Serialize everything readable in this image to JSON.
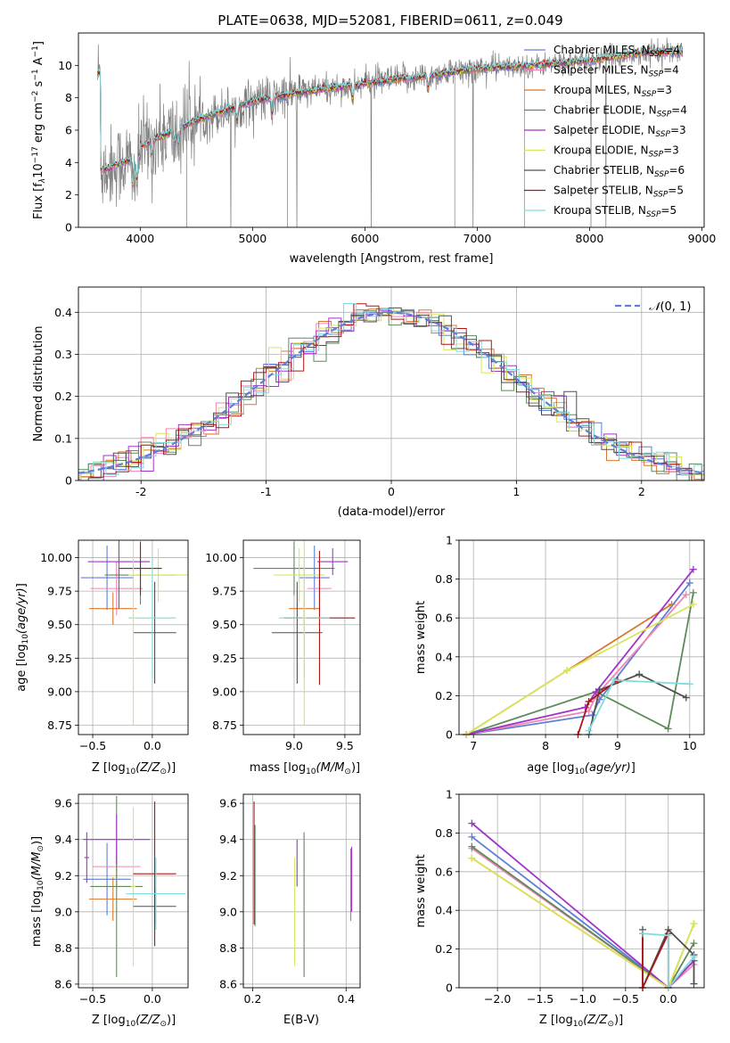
{
  "figure_title": "PLATE=0638, MJD=52081, FIBERID=0611, z=0.049",
  "legend_main": [
    {
      "label": "Chabrier MILES, N$_{SSP}$=4",
      "text": "Chabrier MILES, N",
      "sub": "SSP",
      "tail": "=4",
      "color": "#5d7fd8"
    },
    {
      "label": "Salpeter MILES, N$_{SSP}$=4",
      "text": "Salpeter MILES, N",
      "sub": "SSP",
      "tail": "=4",
      "color": "#ef86b3"
    },
    {
      "label": "Kroupa MILES, N$_{SSP}$=3",
      "text": "Kroupa MILES, N",
      "sub": "SSP",
      "tail": "=3",
      "color": "#d9782c"
    },
    {
      "label": "Chabrier ELODIE, N$_{SSP}$=4",
      "text": "Chabrier ELODIE, N",
      "sub": "SSP",
      "tail": "=4",
      "color": "#5e8a5a"
    },
    {
      "label": "Salpeter ELODIE, N$_{SSP}$=3",
      "text": "Salpeter ELODIE, N",
      "sub": "SSP",
      "tail": "=3",
      "color": "#a135c7"
    },
    {
      "label": "Kroupa ELODIE, N$_{SSP}$=3",
      "text": "Kroupa ELODIE, N",
      "sub": "SSP",
      "tail": "=3",
      "color": "#d7e65a"
    },
    {
      "label": "Chabrier STELIB, N$_{SSP}$=6",
      "text": "Chabrier STELIB, N",
      "sub": "SSP",
      "tail": "=6",
      "color": "#505050"
    },
    {
      "label": "Salpeter STELIB, N$_{SSP}$=5",
      "text": "Salpeter STELIB, N",
      "sub": "SSP",
      "tail": "=5",
      "color": "#a81818"
    },
    {
      "label": "Kroupa STELIB, N$_{SSP}$=5",
      "text": "Kroupa STELIB, N",
      "sub": "SSP",
      "tail": "=5",
      "color": "#7fdcdc"
    }
  ],
  "chart_data": [
    {
      "id": "spectrum",
      "type": "line",
      "xlabel": "wavelength [Angstrom, rest frame]",
      "ylabel": "Flux [f_λ 10^-17 erg cm^-2 s^-1 A^-1]",
      "xlim": [
        3450,
        9020
      ],
      "ylim": [
        0,
        12
      ],
      "xticks": [
        4000,
        5000,
        6000,
        7000,
        8000,
        9000
      ],
      "yticks": [
        0,
        2,
        4,
        6,
        8,
        10
      ],
      "data_color": "#808080",
      "observed": {
        "name": "data",
        "x_range": [
          3620,
          8830
        ],
        "approx_points": [
          [
            3650,
            4.0
          ],
          [
            4000,
            5.0
          ],
          [
            4500,
            6.6
          ],
          [
            5000,
            7.8
          ],
          [
            5500,
            8.4
          ],
          [
            6000,
            8.9
          ],
          [
            6500,
            9.3
          ],
          [
            7000,
            9.8
          ],
          [
            7500,
            10.0
          ],
          [
            8000,
            10.3
          ],
          [
            8500,
            10.8
          ],
          [
            8830,
            10.8
          ]
        ]
      }
    },
    {
      "id": "residuals",
      "type": "step",
      "xlabel": "(data-model)/error",
      "ylabel": "Normed distribution",
      "xlim": [
        -2.5,
        2.5
      ],
      "ylim": [
        0,
        0.46
      ],
      "xticks": [
        -2,
        -1,
        0,
        1,
        2
      ],
      "yticks": [
        0.0,
        0.1,
        0.2,
        0.3,
        0.4
      ],
      "grid": true,
      "bin_width": 0.1,
      "reference": {
        "name": "$\\mathcal{N}(0,1)$",
        "color": "#5d7fd8",
        "style": "dashed"
      },
      "legend_position": "upper right"
    },
    {
      "id": "age_vs_Z",
      "type": "scatter",
      "xlabel": "Z [log10(Z/Z☉)]",
      "ylabel": "age [log10(age/yr)]",
      "xlim": [
        -0.62,
        0.3
      ],
      "ylim": [
        8.68,
        10.13
      ],
      "xticks": [
        -0.5,
        0.0
      ],
      "xticklabels": [
        "−0.5",
        "0.0"
      ],
      "yticks": [
        8.75,
        9.0,
        9.25,
        9.5,
        9.75,
        10.0
      ],
      "yticklabels": [
        "8.75",
        "9.00",
        "9.25",
        "9.50",
        "9.75",
        "10.00"
      ],
      "grid": true,
      "points": [
        {
          "x": -0.38,
          "y": 9.85,
          "xerr": 0.22,
          "yerr": 0.24,
          "color": "#5d7fd8"
        },
        {
          "x": -0.3,
          "y": 9.77,
          "xerr": 0.22,
          "yerr": 0.2,
          "color": "#ef86b3"
        },
        {
          "x": -0.33,
          "y": 9.62,
          "xerr": 0.2,
          "yerr": 0.12,
          "color": "#d9782c"
        },
        {
          "x": -0.1,
          "y": 9.87,
          "xerr": 0.3,
          "yerr": 0.22,
          "color": "#5e8a5a"
        },
        {
          "x": -0.28,
          "y": 9.97,
          "xerr": 0.26,
          "yerr": 0.35,
          "color": "#a135c7"
        },
        {
          "x": 0.05,
          "y": 9.87,
          "xerr": 0.25,
          "yerr": 0.2,
          "color": "#d7e65a"
        },
        {
          "x": 0.02,
          "y": 9.44,
          "xerr": 0.18,
          "yerr": 0.38,
          "color": "#505050"
        },
        {
          "x": -0.1,
          "y": 9.92,
          "xerr": 0.18,
          "yerr": 0.2,
          "color": "#a81818"
        },
        {
          "x": 0.0,
          "y": 9.55,
          "xerr": 0.2,
          "yerr": 0.45,
          "color": "#7fdcdc"
        },
        {
          "x": -0.16,
          "y": 9.55,
          "xerr": 0.02,
          "yerr": 0.8,
          "color": "#d7e65a"
        }
      ]
    },
    {
      "id": "age_vs_mass",
      "type": "scatter",
      "xlabel": "mass [log10(M/M☉)]",
      "ylabel": "",
      "xlim": [
        8.5,
        9.65
      ],
      "ylim": [
        8.68,
        10.13
      ],
      "xticks": [
        9.0,
        9.5
      ],
      "xticklabels": [
        "9.0",
        "9.5"
      ],
      "yticks": [
        8.75,
        9.0,
        9.25,
        9.5,
        9.75,
        10.0
      ],
      "yticklabels": [
        "8.75",
        "9.00",
        "9.25",
        "9.50",
        "9.75",
        "10.00"
      ],
      "grid": true,
      "points": [
        {
          "x": 9.2,
          "y": 9.85,
          "xerr": 0.15,
          "yerr": 0.24,
          "color": "#5d7fd8"
        },
        {
          "x": 9.25,
          "y": 9.77,
          "xerr": 0.12,
          "yerr": 0.2,
          "color": "#ef86b3"
        },
        {
          "x": 9.1,
          "y": 9.62,
          "xerr": 0.15,
          "yerr": 0.12,
          "color": "#d9782c"
        },
        {
          "x": 9.0,
          "y": 9.92,
          "xerr": 0.4,
          "yerr": 0.2,
          "color": "#5e8a5a"
        },
        {
          "x": 9.38,
          "y": 9.97,
          "xerr": 0.15,
          "yerr": 0.1,
          "color": "#a135c7"
        },
        {
          "x": 9.05,
          "y": 9.87,
          "xerr": 0.25,
          "yerr": 0.2,
          "color": "#d7e65a"
        },
        {
          "x": 9.03,
          "y": 9.44,
          "xerr": 0.25,
          "yerr": 0.38,
          "color": "#505050"
        },
        {
          "x": 9.25,
          "y": 9.55,
          "xerr": 0.35,
          "yerr": 0.5,
          "color": "#a81818"
        },
        {
          "x": 9.1,
          "y": 9.55,
          "xerr": 0.25,
          "yerr": 0.45,
          "color": "#7fdcdc"
        },
        {
          "x": 9.1,
          "y": 9.55,
          "xerr": 0.02,
          "yerr": 0.8,
          "color": "#d7e65a"
        }
      ]
    },
    {
      "id": "weight_vs_age",
      "type": "line",
      "xlabel": "age [log10(age/yr)]",
      "ylabel": "mass weight",
      "xlim": [
        6.8,
        10.2
      ],
      "ylim": [
        0,
        1.0
      ],
      "xticks": [
        7,
        8,
        9,
        10
      ],
      "yticks": [
        0.0,
        0.2,
        0.4,
        0.6,
        0.8,
        1.0
      ],
      "grid": true,
      "series": [
        {
          "color": "#5d7fd8",
          "x": [
            6.9,
            8.65,
            8.75,
            10.0
          ],
          "y": [
            0.0,
            0.1,
            0.18,
            0.78
          ]
        },
        {
          "color": "#ef86b3",
          "x": [
            6.9,
            8.6,
            8.7,
            9.95
          ],
          "y": [
            0.0,
            0.12,
            0.2,
            0.72
          ]
        },
        {
          "color": "#d9782c",
          "x": [
            6.9,
            8.3,
            9.75
          ],
          "y": [
            0.0,
            0.33,
            0.67
          ]
        },
        {
          "color": "#5e8a5a",
          "x": [
            6.9,
            8.7,
            9.7,
            10.05
          ],
          "y": [
            0.0,
            0.22,
            0.03,
            0.73
          ]
        },
        {
          "color": "#a135c7",
          "x": [
            6.9,
            8.55,
            8.7,
            10.05
          ],
          "y": [
            0.0,
            0.14,
            0.22,
            0.85
          ]
        },
        {
          "color": "#d7e65a",
          "x": [
            6.9,
            8.3,
            10.05
          ],
          "y": [
            0.0,
            0.33,
            0.67
          ]
        },
        {
          "color": "#505050",
          "x": [
            8.6,
            8.75,
            9.3,
            9.95
          ],
          "y": [
            0.0,
            0.23,
            0.31,
            0.19
          ]
        },
        {
          "color": "#a81818",
          "x": [
            8.45,
            8.6,
            9.0
          ],
          "y": [
            0.0,
            0.17,
            0.28
          ]
        },
        {
          "color": "#7fdcdc",
          "x": [
            8.6,
            8.95,
            10.0
          ],
          "y": [
            0.02,
            0.28,
            0.26
          ]
        }
      ]
    },
    {
      "id": "mass_vs_Z",
      "type": "scatter",
      "xlabel": "Z [log10(Z/Z☉)]",
      "ylabel": "mass [log10(M/M☉)]",
      "xlim": [
        -0.62,
        0.3
      ],
      "ylim": [
        8.58,
        9.65
      ],
      "xticks": [
        -0.5,
        0.0
      ],
      "xticklabels": [
        "−0.5",
        "0.0"
      ],
      "yticks": [
        8.6,
        8.8,
        9.0,
        9.2,
        9.4,
        9.6
      ],
      "yticklabels": [
        "8.6",
        "8.8",
        "9.0",
        "9.2",
        "9.4",
        "9.6"
      ],
      "grid": true,
      "points": [
        {
          "x": -0.38,
          "y": 9.18,
          "xerr": 0.2,
          "yerr": 0.2,
          "color": "#5d7fd8"
        },
        {
          "x": -0.3,
          "y": 9.25,
          "xerr": 0.2,
          "yerr": 0.12,
          "color": "#ef86b3"
        },
        {
          "x": -0.33,
          "y": 9.07,
          "xerr": 0.2,
          "yerr": 0.12,
          "color": "#d9782c"
        },
        {
          "x": -0.3,
          "y": 9.14,
          "xerr": 0.22,
          "yerr": 0.5,
          "color": "#5e8a5a"
        },
        {
          "x": -0.3,
          "y": 9.4,
          "xerr": 0.28,
          "yerr": 0.14,
          "color": "#a135c7"
        },
        {
          "x": -0.16,
          "y": 9.14,
          "xerr": 0.02,
          "yerr": 0.44,
          "color": "#d7e65a"
        },
        {
          "x": 0.02,
          "y": 9.03,
          "xerr": 0.18,
          "yerr": 0.1,
          "color": "#505050"
        },
        {
          "x": 0.02,
          "y": 9.21,
          "xerr": 0.18,
          "yerr": 0.4,
          "color": "#a81818"
        },
        {
          "x": 0.03,
          "y": 9.1,
          "xerr": 0.25,
          "yerr": 0.2,
          "color": "#7fdcdc"
        },
        {
          "x": -0.55,
          "y": 9.3,
          "xerr": 0.02,
          "yerr": 0.14,
          "color": "#a135c7"
        }
      ]
    },
    {
      "id": "mass_vs_ebv",
      "type": "scatter",
      "xlabel": "E(B-V)",
      "ylabel": "",
      "xlim": [
        0.18,
        0.43
      ],
      "ylim": [
        8.58,
        9.65
      ],
      "xticks": [
        0.2,
        0.4
      ],
      "xticklabels": [
        "0.2",
        "0.4"
      ],
      "yticks": [
        8.6,
        8.8,
        9.0,
        9.2,
        9.4,
        9.6
      ],
      "yticklabels": [
        "8.6",
        "8.8",
        "9.0",
        "9.2",
        "9.4",
        "9.6"
      ],
      "grid": true,
      "points": [
        {
          "x": 0.205,
          "y": 9.2,
          "xerr": 0,
          "yerr": 0.28,
          "color": "#5e8a5a"
        },
        {
          "x": 0.203,
          "y": 9.27,
          "xerr": 0,
          "yerr": 0.34,
          "color": "#a81818"
        },
        {
          "x": 0.29,
          "y": 9.0,
          "xerr": 0,
          "yerr": 0.3,
          "color": "#d7e65a"
        },
        {
          "x": 0.295,
          "y": 9.27,
          "xerr": 0,
          "yerr": 0.13,
          "color": "#a135c7"
        },
        {
          "x": 0.31,
          "y": 9.04,
          "xerr": 0,
          "yerr": 0.4,
          "color": "#5e8a5a"
        },
        {
          "x": 0.41,
          "y": 9.15,
          "xerr": 0,
          "yerr": 0.2,
          "color": "#d9782c"
        },
        {
          "x": 0.412,
          "y": 9.18,
          "xerr": 0,
          "yerr": 0.18,
          "color": "#a135c7"
        }
      ]
    },
    {
      "id": "weight_vs_Z",
      "type": "line",
      "xlabel": "Z [log10(Z/Z☉)]",
      "ylabel": "mass weight",
      "xlim": [
        -2.45,
        0.42
      ],
      "ylim": [
        0,
        1.0
      ],
      "xticks": [
        -2.0,
        -1.5,
        -1.0,
        -0.5,
        0.0
      ],
      "xticklabels": [
        "−2.0",
        "−1.5",
        "−1.0",
        "−0.5",
        "0.0"
      ],
      "yticks": [
        0.0,
        0.2,
        0.4,
        0.6,
        0.8,
        1.0
      ],
      "grid": true,
      "series": [
        {
          "color": "#5d7fd8",
          "x": [
            -2.3,
            0.0,
            0.3
          ],
          "y": [
            0.78,
            0.0,
            0.14
          ]
        },
        {
          "color": "#ef86b3",
          "x": [
            -2.3,
            0.0,
            0.3
          ],
          "y": [
            0.72,
            0.0,
            0.12
          ]
        },
        {
          "color": "#d9782c",
          "x": [
            -2.3,
            0.0,
            0.3
          ],
          "y": [
            0.67,
            0.0,
            0.33
          ]
        },
        {
          "color": "#5e8a5a",
          "x": [
            -2.3,
            0.0,
            0.3
          ],
          "y": [
            0.73,
            0.0,
            0.23
          ]
        },
        {
          "color": "#a135c7",
          "x": [
            -2.3,
            0.0,
            0.3
          ],
          "y": [
            0.85,
            0.0,
            0.14
          ]
        },
        {
          "color": "#d7e65a",
          "x": [
            -2.3,
            0.0,
            0.3
          ],
          "y": [
            0.67,
            0.0,
            0.33
          ]
        },
        {
          "color": "#505050",
          "x": [
            -0.3,
            -0.3,
            0.0,
            0.3,
            0.3
          ],
          "y": [
            0.3,
            0.0,
            0.3,
            0.17,
            0.02
          ]
        },
        {
          "color": "#a81818",
          "x": [
            -0.3,
            -0.3,
            0.0,
            0.0
          ],
          "y": [
            0.28,
            0.0,
            0.28,
            0.0
          ]
        },
        {
          "color": "#7fdcdc",
          "x": [
            -0.3,
            0.0,
            0.0,
            0.3
          ],
          "y": [
            0.28,
            0.27,
            0.0,
            0.16
          ]
        }
      ]
    }
  ],
  "axis_titles": {
    "spectrum_x": "wavelength [Angstrom, rest frame]",
    "spectrum_y_pre": "Flux [f",
    "resid_x": "(data-model)/error",
    "resid_y": "Normed distribution",
    "resid_legend": "N(0, 1)",
    "age_y": "age  [log",
    "mass_weight": "mass weight",
    "ebv": "E(B-V)"
  }
}
